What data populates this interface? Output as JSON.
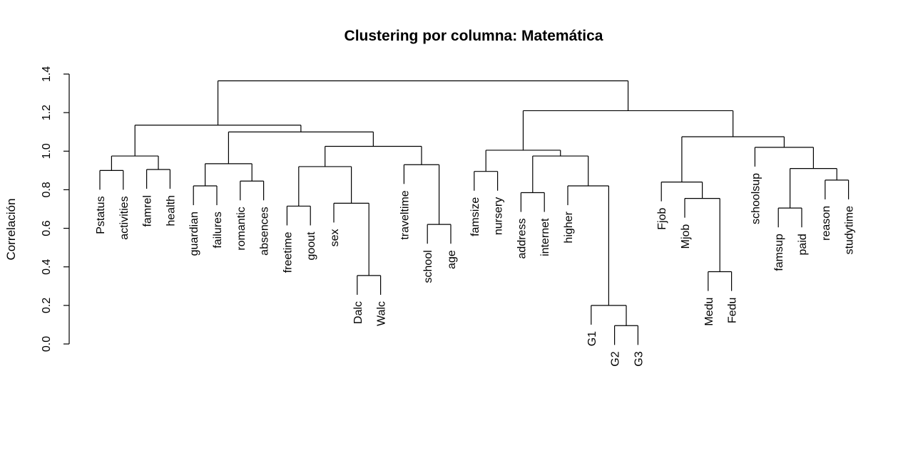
{
  "chart_data": {
    "type": "dendrogram",
    "title": "Clustering por columna: Matemática",
    "ylabel": "Correlación",
    "xlabel": "",
    "ylim": [
      0,
      1.4
    ],
    "yticks": [
      "0.0",
      "0.2",
      "0.4",
      "0.6",
      "0.8",
      "1.0",
      "1.2",
      "1.4"
    ],
    "leaves": [
      "Pstatus",
      "activities",
      "famrel",
      "health",
      "guardian",
      "failures",
      "romantic",
      "absences",
      "freetime",
      "goout",
      "sex",
      "Dalc",
      "Walc",
      "traveltime",
      "school",
      "age",
      "famsize",
      "nursery",
      "address",
      "internet",
      "higher",
      "G1",
      "G2",
      "G3",
      "Fjob",
      "Mjob",
      "Medu",
      "Fedu",
      "schoolsup",
      "famsup",
      "paid",
      "reason",
      "studytime"
    ],
    "merges": [
      {
        "left": "Pstatus",
        "right": "activities",
        "height": 0.9
      },
      {
        "left": "famrel",
        "right": "health",
        "height": 0.905
      },
      {
        "left": "m1",
        "right": "m2",
        "height": 0.975,
        "id": "m3"
      },
      {
        "left": "guardian",
        "right": "failures",
        "height": 0.82,
        "id": "m4"
      },
      {
        "left": "romantic",
        "right": "absences",
        "height": 0.845,
        "id": "m5"
      },
      {
        "left": "m4",
        "right": "m5",
        "height": 0.935,
        "id": "m6"
      },
      {
        "left": "freetime",
        "right": "goout",
        "height": 0.715,
        "id": "m7"
      },
      {
        "left": "Dalc",
        "right": "Walc",
        "height": 0.355,
        "id": "m8"
      },
      {
        "left": "sex",
        "right": "m8",
        "height": 0.73,
        "id": "m9"
      },
      {
        "left": "m7",
        "right": "m9",
        "height": 0.92,
        "id": "m10"
      },
      {
        "left": "school",
        "right": "age",
        "height": 0.62,
        "id": "m11"
      },
      {
        "left": "traveltime",
        "right": "m11",
        "height": 0.93,
        "id": "m12"
      },
      {
        "left": "m10",
        "right": "m12",
        "height": 1.025,
        "id": "m13"
      },
      {
        "left": "m6",
        "right": "m13",
        "height": 1.1,
        "id": "m14"
      },
      {
        "left": "m3",
        "right": "m14",
        "height": 1.135,
        "id": "m15"
      },
      {
        "left": "famsize",
        "right": "nursery",
        "height": 0.895,
        "id": "m16"
      },
      {
        "left": "address",
        "right": "internet",
        "height": 0.785,
        "id": "m17"
      },
      {
        "left": "G2",
        "right": "G3",
        "height": 0.095,
        "id": "m18"
      },
      {
        "left": "G1",
        "right": "m18",
        "height": 0.2,
        "id": "m19"
      },
      {
        "left": "higher",
        "right": "m19",
        "height": 0.82,
        "id": "m20"
      },
      {
        "left": "m17",
        "right": "m20",
        "height": 0.975,
        "id": "m21"
      },
      {
        "left": "m16",
        "right": "m21",
        "height": 1.005,
        "id": "m22"
      },
      {
        "left": "Medu",
        "right": "Fedu",
        "height": 0.375,
        "id": "m23"
      },
      {
        "left": "Mjob",
        "right": "m23",
        "height": 0.755,
        "id": "m24"
      },
      {
        "left": "Fjob",
        "right": "m24",
        "height": 0.84,
        "id": "m25"
      },
      {
        "left": "famsup",
        "right": "paid",
        "height": 0.705,
        "id": "m26"
      },
      {
        "left": "reason",
        "right": "studytime",
        "height": 0.85,
        "id": "m27"
      },
      {
        "left": "m26",
        "right": "m27",
        "height": 0.91,
        "id": "m28"
      },
      {
        "left": "schoolsup",
        "right": "m28",
        "height": 1.02,
        "id": "m29"
      },
      {
        "left": "m25",
        "right": "m29",
        "height": 1.075,
        "id": "m30"
      },
      {
        "left": "m22",
        "right": "m30",
        "height": 1.21,
        "id": "m31"
      },
      {
        "left": "m15",
        "right": "m31",
        "height": 1.365,
        "id": "m32"
      }
    ]
  }
}
